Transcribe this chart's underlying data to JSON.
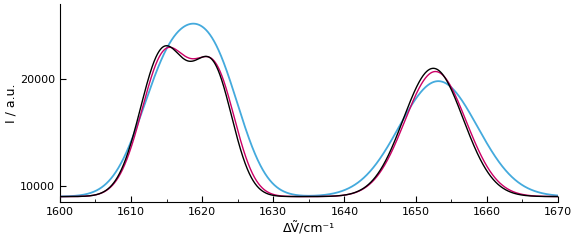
{
  "xlim": [
    1600,
    1670
  ],
  "ylim": [
    8500,
    27000
  ],
  "yticks": [
    10000,
    20000
  ],
  "xticks": [
    1600,
    1610,
    1620,
    1630,
    1640,
    1650,
    1660,
    1670
  ],
  "xlabel": "ΔṼ/cm⁻¹",
  "ylabel": "I / a.u.",
  "bg_color": "#ffffff",
  "line_colors": {
    "black": "#000000",
    "magenta": "#cc0066",
    "cyan": "#44aadd"
  },
  "baseline": 9000
}
